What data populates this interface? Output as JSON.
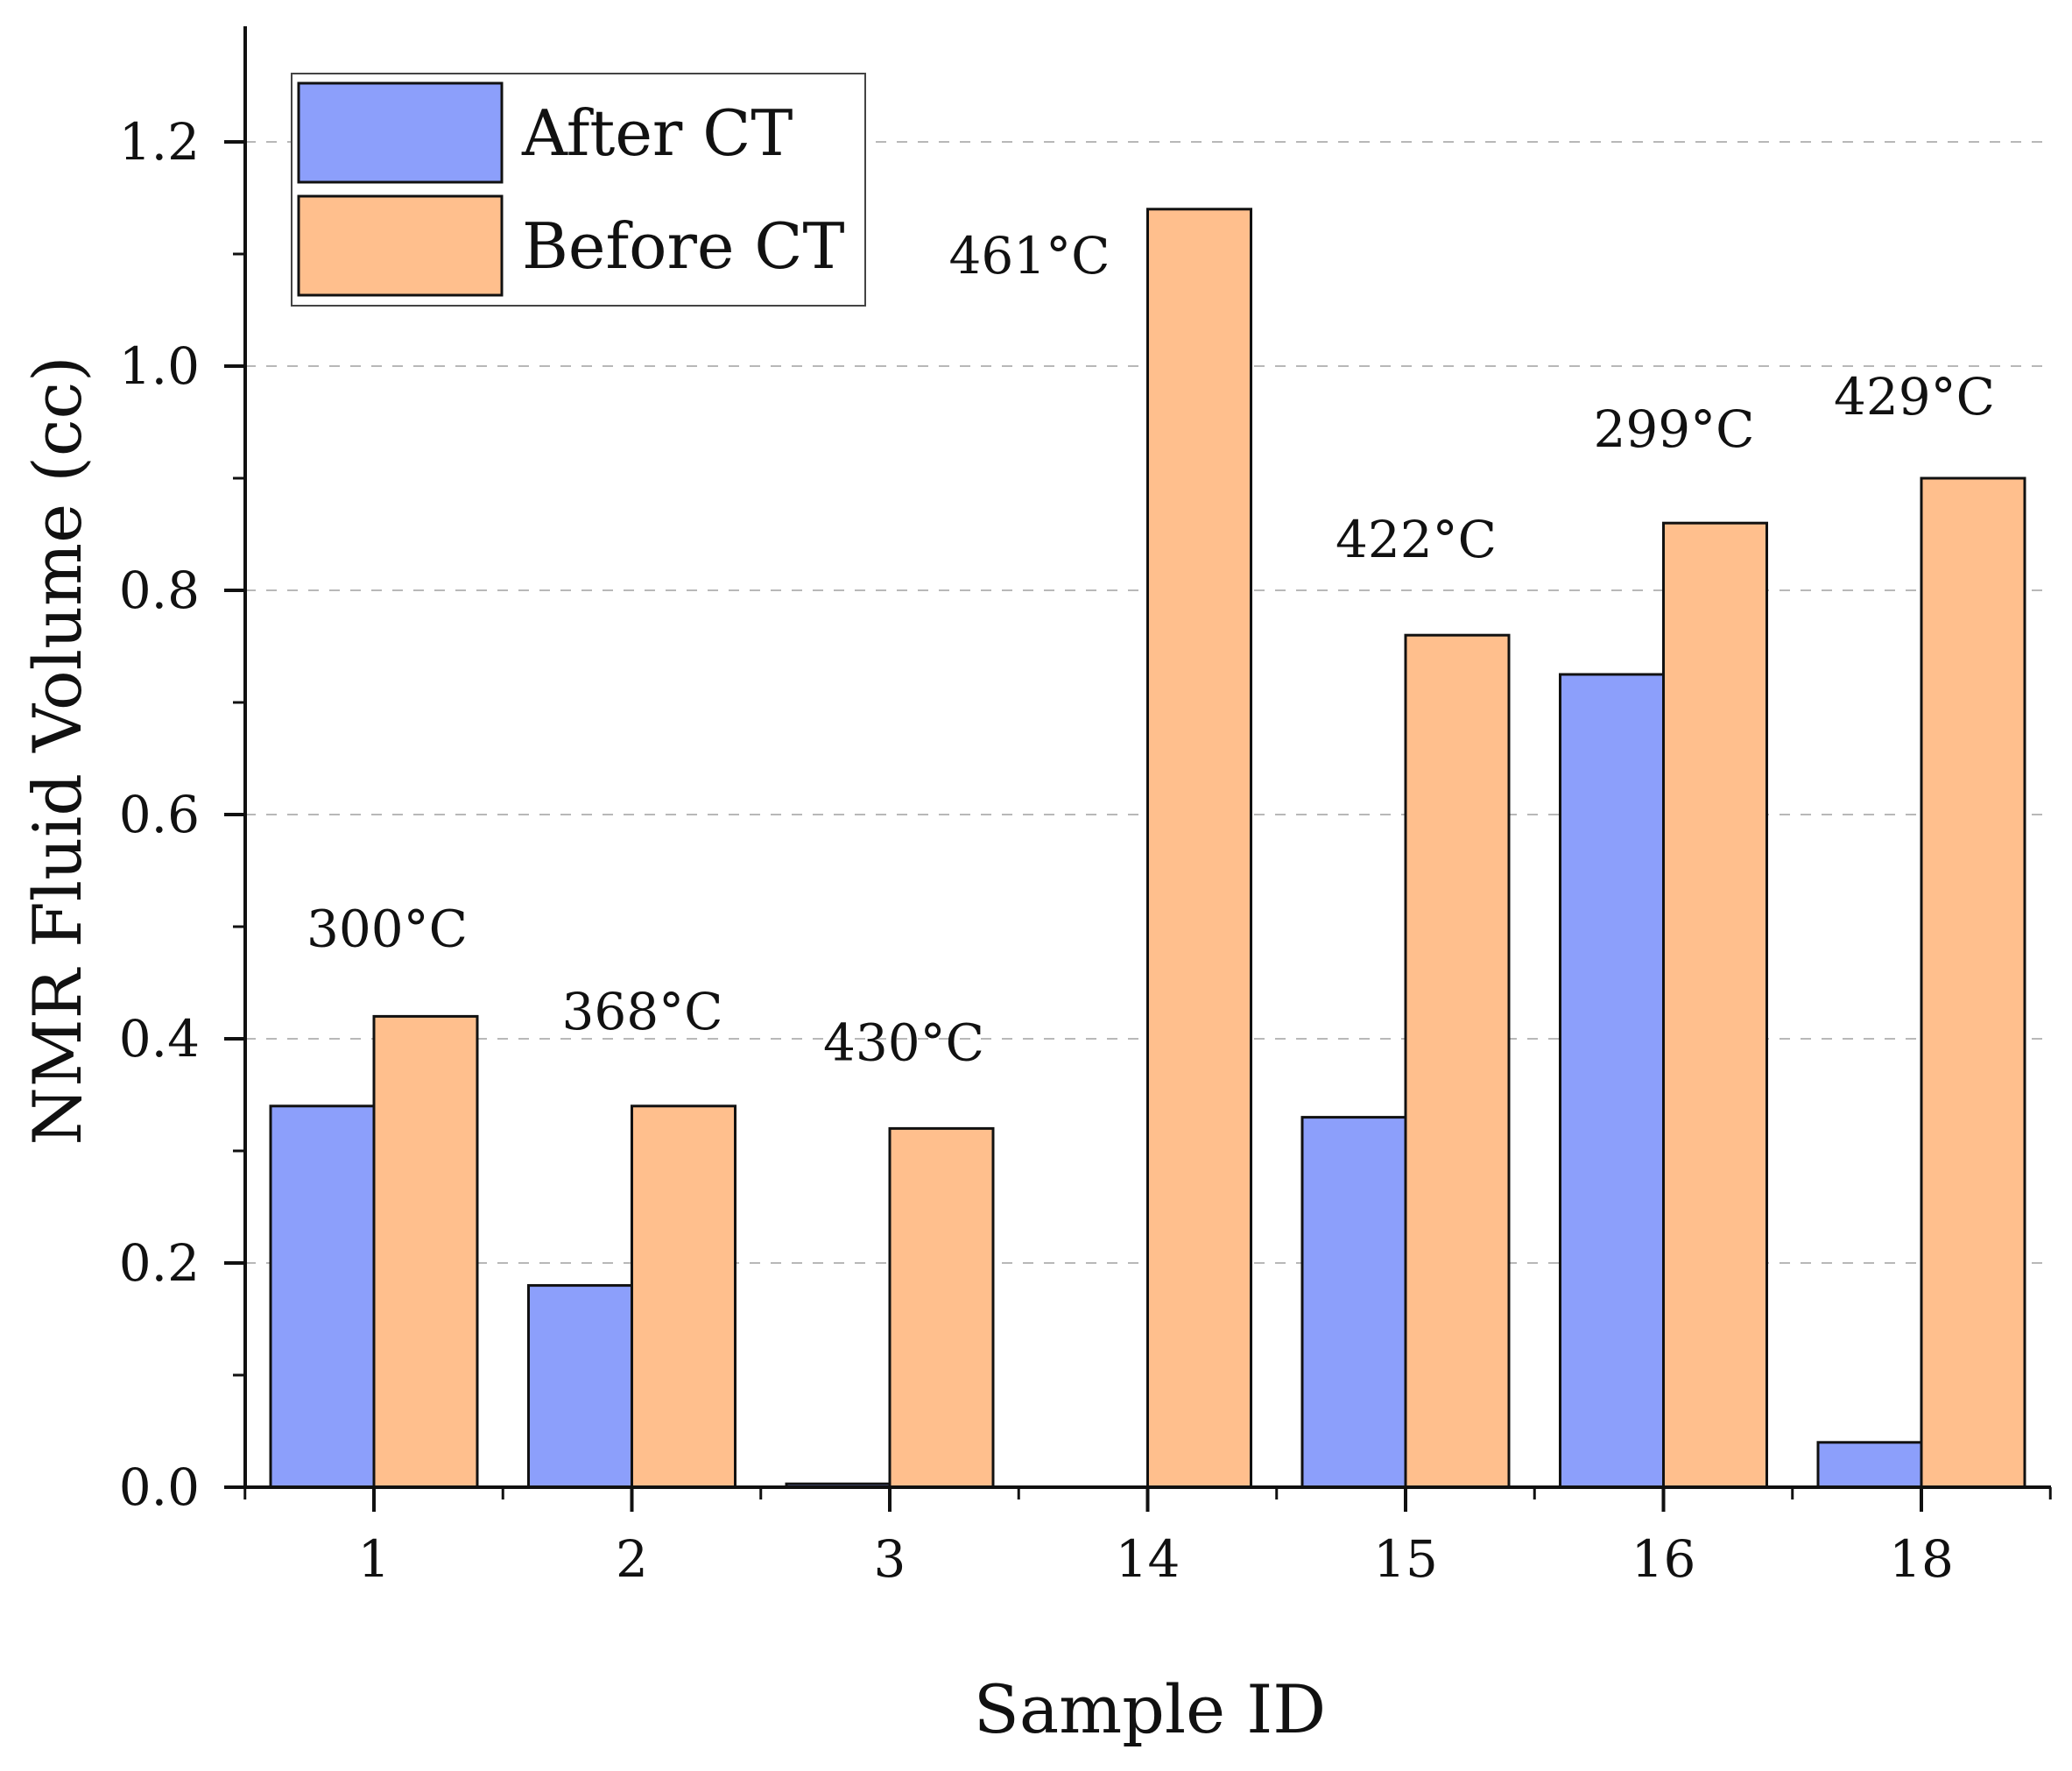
{
  "chart_data": {
    "type": "bar",
    "title": "",
    "xlabel": "Sample ID",
    "ylabel": "NMR Fluid Volume (cc)",
    "categories": [
      "1",
      "2",
      "3",
      "14",
      "15",
      "16",
      "18"
    ],
    "series": [
      {
        "name": "After CT",
        "color": "#8c9ffb",
        "values": [
          0.34,
          0.18,
          0.003,
          0.0,
          0.33,
          0.725,
          0.04
        ]
      },
      {
        "name": "Before CT",
        "color": "#ffbf8d",
        "values": [
          0.42,
          0.34,
          0.32,
          1.14,
          0.76,
          0.86,
          0.9
        ]
      }
    ],
    "ylim": [
      0.0,
      1.3
    ],
    "yticks": [
      0.0,
      0.2,
      0.4,
      0.6,
      0.8,
      1.0,
      1.2
    ],
    "ytick_labels": [
      "0.0",
      "0.2",
      "0.4",
      "0.6",
      "0.8",
      "1.0",
      "1.2"
    ],
    "grid": true,
    "legend": {
      "position": "top-left",
      "entries": [
        "After CT",
        "Before CT"
      ]
    },
    "annotations": [
      {
        "category": "1",
        "text": "300°C"
      },
      {
        "category": "2",
        "text": "368°C"
      },
      {
        "category": "3",
        "text": "430°C"
      },
      {
        "category": "14",
        "text": "461°C"
      },
      {
        "category": "15",
        "text": "422°C"
      },
      {
        "category": "16",
        "text": "299°C"
      },
      {
        "category": "18",
        "text": "429°C"
      }
    ]
  }
}
